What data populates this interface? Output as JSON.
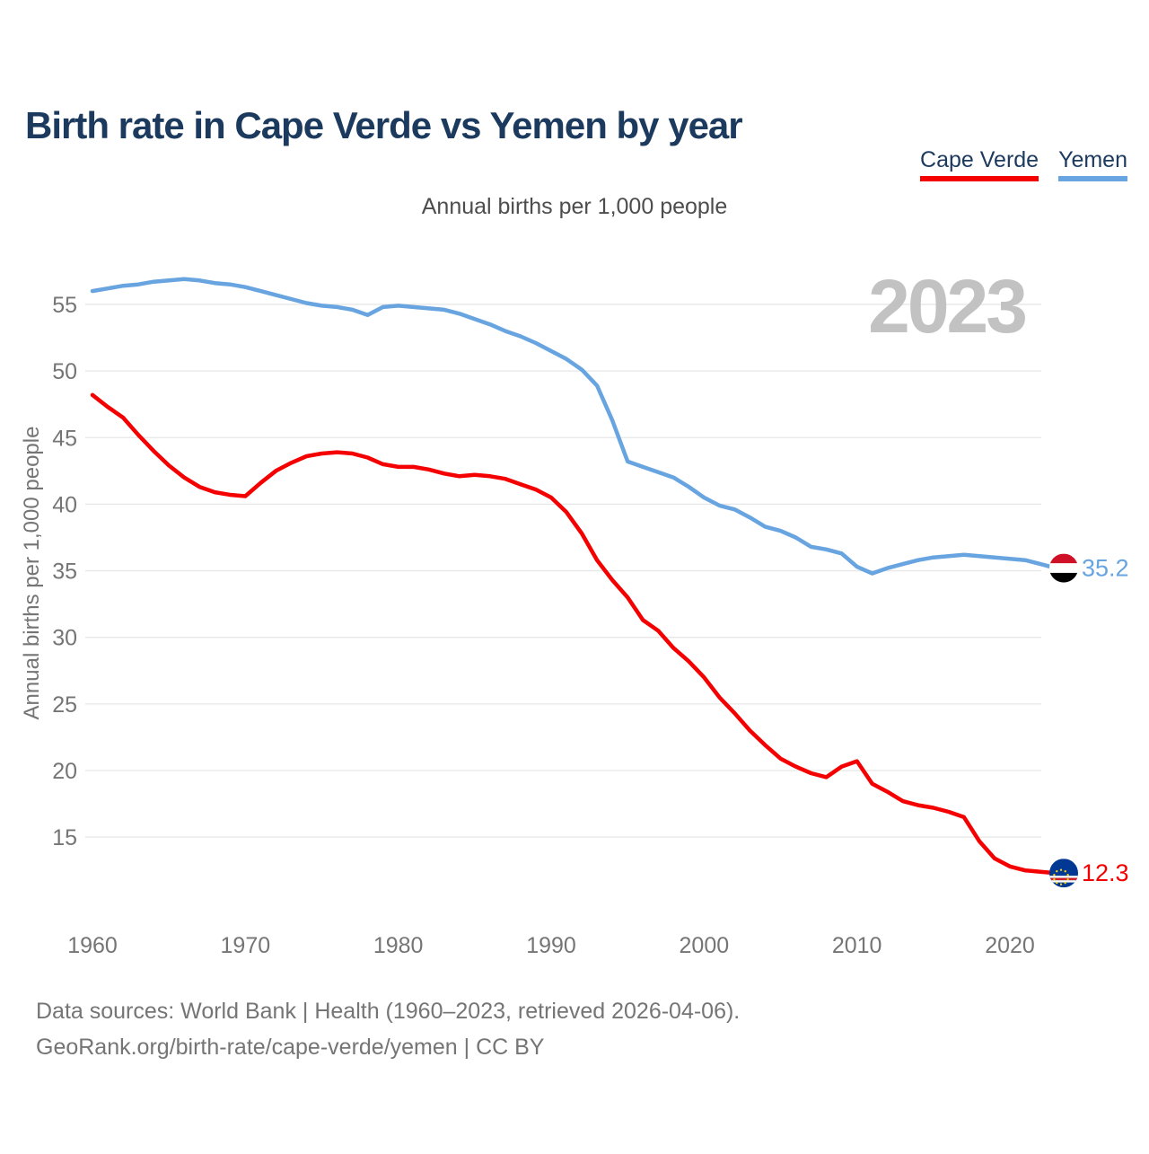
{
  "page": {
    "title": "Birth rate in Cape Verde vs Yemen by year",
    "subtitle": "Annual births per 1,000 people",
    "watermark_year": "2023"
  },
  "legend": {
    "cape_verde_label": "Cape Verde",
    "yemen_label": "Yemen"
  },
  "footer": {
    "sources_line": "Data sources: World Bank | Health (1960–2023, retrieved 2026-04-06).",
    "attribution_line": "GeoRank.org/birth-rate/cape-verde/yemen | CC BY"
  },
  "colors": {
    "cape_verde_red": "#f40000",
    "yemen_blue": "#67a4e0",
    "title_navy": "#1c3a5e",
    "axis_gray": "#757575",
    "gridline_gray": "#e7e7e7",
    "watermark_gray": "#c2c2c2"
  },
  "chart_data": {
    "type": "line",
    "title": "Birth rate in Cape Verde vs Yemen by year",
    "subtitle": "Annual births per 1,000 people",
    "ylabel": "Annual births per 1,000 people",
    "xlabel": "",
    "x_range": [
      1960,
      2023
    ],
    "ylim": [
      12,
      58
    ],
    "grid": "horizontal-only",
    "legend_position": "top-right",
    "yticks": [
      55,
      50,
      45,
      40,
      35,
      30,
      25,
      20,
      15
    ],
    "xticks": [
      1960,
      1970,
      1980,
      1990,
      2000,
      2010,
      2020
    ],
    "watermark": "2023",
    "series": [
      {
        "name": "Yemen",
        "color": "#67a4e0",
        "start_year": 1960,
        "values": [
          56.0,
          56.2,
          56.4,
          56.5,
          56.7,
          56.8,
          56.9,
          56.8,
          56.6,
          56.5,
          56.3,
          56.0,
          55.7,
          55.4,
          55.1,
          54.9,
          54.8,
          54.6,
          54.2,
          54.8,
          54.9,
          54.8,
          54.7,
          54.6,
          54.3,
          53.9,
          53.5,
          53.0,
          52.6,
          52.1,
          51.5,
          50.9,
          50.1,
          48.9,
          46.3,
          43.2,
          42.8,
          42.4,
          42.0,
          41.3,
          40.5,
          39.9,
          39.6,
          39.0,
          38.3,
          38.0,
          37.5,
          36.8,
          36.6,
          36.3,
          35.3,
          34.8,
          35.2,
          35.5,
          35.8,
          36.0,
          36.1,
          36.2,
          36.1,
          36.0,
          35.9,
          35.8,
          35.5,
          35.2
        ]
      },
      {
        "name": "Cape Verde",
        "color": "#f40000",
        "start_year": 1960,
        "values": [
          48.2,
          47.3,
          46.5,
          45.2,
          44.0,
          42.9,
          42.0,
          41.3,
          40.9,
          40.7,
          40.6,
          41.6,
          42.5,
          43.1,
          43.6,
          43.8,
          43.9,
          43.8,
          43.5,
          43.0,
          42.8,
          42.8,
          42.6,
          42.3,
          42.1,
          42.2,
          42.1,
          41.9,
          41.5,
          41.1,
          40.5,
          39.4,
          37.8,
          35.8,
          34.3,
          33.0,
          31.3,
          30.5,
          29.2,
          28.2,
          27.0,
          25.5,
          24.3,
          23.0,
          21.9,
          20.9,
          20.3,
          19.8,
          19.5,
          20.3,
          20.7,
          19.0,
          18.4,
          17.7,
          17.4,
          17.2,
          16.9,
          16.5,
          14.7,
          13.4,
          12.8,
          12.5,
          12.4,
          12.3
        ]
      }
    ],
    "end_labels": [
      {
        "series": "Yemen",
        "label": "35.2",
        "flag_icon": "yemen-flag-icon"
      },
      {
        "series": "Cape Verde",
        "label": "12.3",
        "flag_icon": "cape-verde-flag-icon"
      }
    ]
  }
}
